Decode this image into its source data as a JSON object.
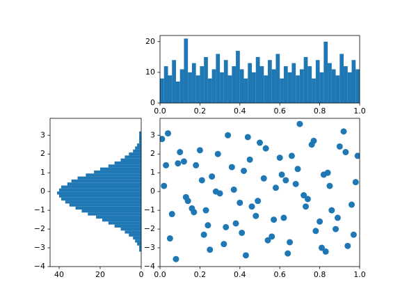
{
  "chart_data": [
    {
      "type": "histogram",
      "orientation": "vertical",
      "color": "#1f77b4",
      "bins": [
        0,
        0.02,
        0.04,
        0.06,
        0.08,
        0.1,
        0.12,
        0.14,
        0.16,
        0.18,
        0.2,
        0.22,
        0.24,
        0.26,
        0.28,
        0.3,
        0.32,
        0.34,
        0.36,
        0.38,
        0.4,
        0.42,
        0.44,
        0.46,
        0.48,
        0.5,
        0.52,
        0.54,
        0.56,
        0.58,
        0.6,
        0.62,
        0.64,
        0.66,
        0.68,
        0.7,
        0.72,
        0.74,
        0.76,
        0.78,
        0.8,
        0.82,
        0.84,
        0.86,
        0.88,
        0.9,
        0.92,
        0.94,
        0.96,
        0.98,
        1
      ],
      "values": [
        8,
        12,
        9,
        14,
        7,
        11,
        21,
        10,
        13,
        9,
        12,
        15,
        8,
        11,
        16,
        10,
        14,
        9,
        12,
        17,
        11,
        8,
        13,
        10,
        15,
        12,
        9,
        14,
        11,
        16,
        8,
        12,
        10,
        13,
        9,
        11,
        15,
        12,
        8,
        14,
        10,
        20,
        13,
        11,
        9,
        16,
        12,
        10,
        14,
        11
      ],
      "xlim": [
        0,
        1
      ],
      "ylim": [
        0,
        22
      ],
      "xticks": [
        {
          "value": 0,
          "label": "0.0"
        },
        0.2,
        0.4,
        0.6,
        0.8,
        {
          "value": 1,
          "label": "1.0"
        }
      ],
      "yticks": [
        0,
        10,
        20
      ]
    },
    {
      "type": "histogram",
      "orientation": "horizontal",
      "color": "#1f77b4",
      "bins": [
        -3.2,
        -3.04,
        -2.88,
        -2.72,
        -2.56,
        -2.4,
        -2.24,
        -2.08,
        -1.92,
        -1.76,
        -1.6,
        -1.44,
        -1.28,
        -1.12,
        -0.96,
        -0.8,
        -0.64,
        -0.48,
        -0.32,
        -0.16,
        0,
        0.16,
        0.32,
        0.48,
        0.64,
        0.8,
        0.96,
        1.12,
        1.28,
        1.44,
        1.6,
        1.76,
        1.92,
        2.08,
        2.24,
        2.4,
        2.56,
        2.72,
        2.88,
        3.04,
        3.2
      ],
      "values": [
        1,
        1,
        2,
        3,
        4,
        6,
        8,
        10,
        13,
        16,
        19,
        22,
        26,
        29,
        32,
        35,
        37,
        39,
        40,
        41,
        40,
        39,
        36,
        34,
        31,
        27,
        23,
        20,
        16,
        13,
        10,
        8,
        6,
        4,
        3,
        2,
        1,
        1,
        1,
        1
      ],
      "xlim": [
        44.4,
        0
      ],
      "ylim": [
        -4,
        3.9
      ],
      "xticks": [
        40,
        20,
        0
      ],
      "yticks": [
        {
          "value": -4,
          "label": "−4"
        },
        {
          "value": -3,
          "label": "−3"
        },
        {
          "value": -2,
          "label": "−2"
        },
        {
          "value": -1,
          "label": "−1"
        },
        0,
        1,
        2,
        3
      ]
    },
    {
      "type": "scatter",
      "color": "#1f77b4",
      "x": [
        0.02,
        0.06,
        0.1,
        0.14,
        0.18,
        0.22,
        0.26,
        0.3,
        0.34,
        0.38,
        0.42,
        0.46,
        0.5,
        0.54,
        0.58,
        0.62,
        0.66,
        0.7,
        0.74,
        0.78,
        0.82,
        0.86,
        0.9,
        0.94,
        0.98,
        0.04,
        0.08,
        0.12,
        0.16,
        0.2,
        0.24,
        0.28,
        0.32,
        0.36,
        0.4,
        0.44,
        0.48,
        0.52,
        0.56,
        0.6,
        0.64,
        0.68,
        0.72,
        0.76,
        0.8,
        0.84,
        0.88,
        0.92,
        0.96,
        0.01,
        0.05,
        0.09,
        0.13,
        0.17,
        0.21,
        0.25,
        0.29,
        0.33,
        0.37,
        0.41,
        0.45,
        0.49,
        0.53,
        0.57,
        0.61,
        0.65,
        0.69,
        0.73,
        0.77,
        0.81,
        0.85,
        0.89,
        0.93,
        0.97,
        0.03,
        0.23,
        0.43,
        0.63,
        0.83,
        0.99
      ],
      "values": [
        0.3,
        -1.2,
        2.1,
        -0.5,
        1.4,
        -2.3,
        0.8,
        -0.1,
        3.0,
        -1.7,
        1.1,
        -0.8,
        2.6,
        -2.6,
        0.2,
        -1.4,
        1.9,
        3.6,
        -0.4,
        -2.1,
        0.9,
        -1.0,
        2.4,
        -2.9,
        0.5,
        3.1,
        -3.6,
        1.6,
        -0.9,
        2.2,
        -1.8,
        0.0,
        -2.8,
        1.3,
        -0.6,
        2.9,
        -1.3,
        0.7,
        -2.4,
        1.8,
        -3.3,
        0.4,
        -0.2,
        2.5,
        -1.6,
        1.0,
        -2.0,
        3.2,
        -0.7,
        2.8,
        -2.5,
        1.5,
        -0.3,
        -1.1,
        0.6,
        -3.1,
        2.0,
        -1.9,
        0.1,
        -2.2,
        1.7,
        -0.5,
        2.3,
        -1.5,
        0.9,
        -2.7,
        1.2,
        -0.8,
        2.7,
        -3.0,
        0.3,
        -1.4,
        2.1,
        -2.3,
        1.4,
        -1.0,
        -3.4,
        0.6,
        -3.2,
        1.9
      ],
      "xlim": [
        0,
        1
      ],
      "ylim": [
        -4,
        3.9
      ],
      "xticks": [
        {
          "value": 0,
          "label": "0.0"
        },
        0.2,
        0.4,
        0.6,
        0.8,
        {
          "value": 1,
          "label": "1.0"
        }
      ],
      "yticks": [
        {
          "value": -4,
          "label": "−4"
        },
        {
          "value": -3,
          "label": "−3"
        },
        {
          "value": -2,
          "label": "−2"
        },
        {
          "value": -1,
          "label": "−1"
        },
        0,
        1,
        2,
        3
      ]
    }
  ]
}
